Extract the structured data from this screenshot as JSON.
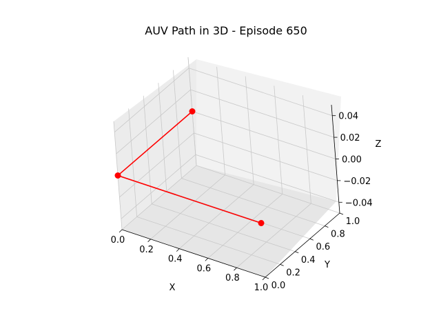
{
  "chart_data": {
    "type": "line",
    "projection": "3d",
    "title": "AUV Path in 3D - Episode 650",
    "xlabel": "X",
    "ylabel": "Y",
    "zlabel": "Z",
    "xlim": [
      0.0,
      1.0
    ],
    "ylim": [
      0.0,
      1.0
    ],
    "zlim": [
      -0.05,
      0.05
    ],
    "xticks": [
      "0.0",
      "0.2",
      "0.4",
      "0.6",
      "0.8",
      "1.0"
    ],
    "yticks": [
      "0.0",
      "0.2",
      "0.4",
      "0.6",
      "0.8",
      "1.0"
    ],
    "zticks": [
      "−0.04",
      "−0.02",
      "0.00",
      "0.02",
      "0.04"
    ],
    "grid": true,
    "series": [
      {
        "color": "#ff0000",
        "marker": "circle",
        "x": [
          1.0,
          0.0,
          0.0
        ],
        "y": [
          0.0,
          0.0,
          1.0
        ],
        "z": [
          0.0,
          0.0,
          0.0
        ]
      }
    ]
  }
}
